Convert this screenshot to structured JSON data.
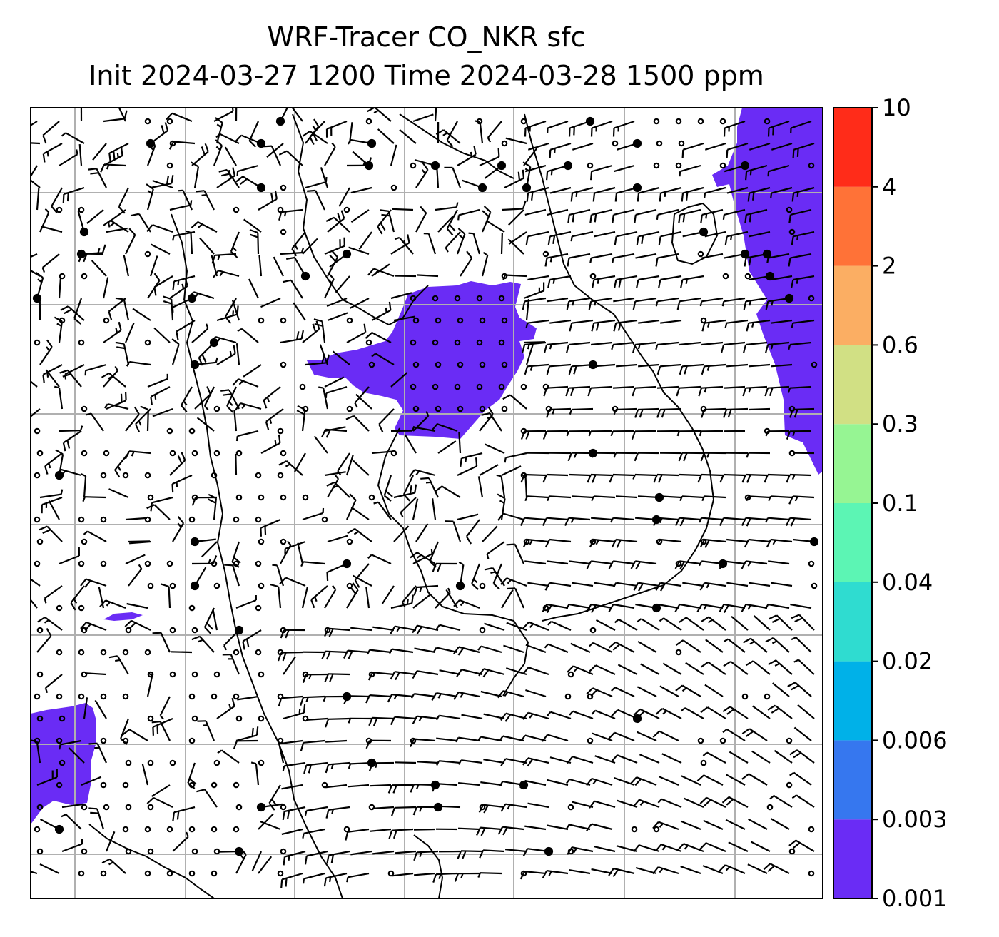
{
  "title": {
    "line1": "WRF-Tracer CO_NKR sfc",
    "line2": "Init 2024-03-27 1200 Time 2024-03-28 1500 ppm"
  },
  "colorbar": {
    "levels": [
      {
        "label": "0.001",
        "color": "#6a2cf5"
      },
      {
        "label": "0.003",
        "color": "#3677ef"
      },
      {
        "label": "0.006",
        "color": "#00b1e8"
      },
      {
        "label": "0.02",
        "color": "#2fdcd0"
      },
      {
        "label": "0.04",
        "color": "#5cf5b4"
      },
      {
        "label": "0.1",
        "color": "#96f593"
      },
      {
        "label": "0.3",
        "color": "#d1e084"
      },
      {
        "label": "0.6",
        "color": "#fbae63"
      },
      {
        "label": "2",
        "color": "#ff7237"
      },
      {
        "label": "4",
        "color": "#ff2c19"
      },
      {
        "label": "10",
        "color": null
      }
    ]
  },
  "map": {
    "filled_color": "#6a2cf5",
    "gridline_color": "#b0b0b0",
    "coastline_color": "#000000",
    "barb_color": "#000000"
  }
}
